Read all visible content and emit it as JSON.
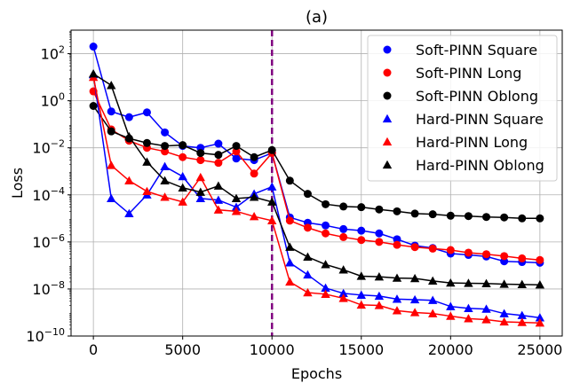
{
  "chart_data": {
    "type": "line",
    "title": "(a)",
    "xlabel": "Epochs",
    "ylabel": "Loss",
    "xlim": [
      -1250,
      26250
    ],
    "ylim": [
      1e-10,
      1000
    ],
    "yscale": "log",
    "grid": true,
    "legend_position": "top-right",
    "x_ticks": [
      0,
      5000,
      10000,
      15000,
      20000,
      25000
    ],
    "x_tick_labels": [
      "0",
      "5000",
      "10000",
      "15000",
      "20000",
      "25000"
    ],
    "y_ticks": [
      1e-10,
      1e-08,
      1e-06,
      0.0001,
      0.01,
      1,
      100
    ],
    "y_tick_base": "10",
    "y_tick_exponents": [
      "−10",
      "−8",
      "−6",
      "−4",
      "−2",
      "0",
      "2"
    ],
    "vline": {
      "x": 10000,
      "color": "#800080",
      "style": "dashed"
    },
    "x": [
      0,
      1000,
      2000,
      3000,
      4000,
      5000,
      6000,
      7000,
      8000,
      9000,
      10000,
      11000,
      12000,
      13000,
      14000,
      15000,
      16000,
      17000,
      18000,
      19000,
      20000,
      21000,
      22000,
      23000,
      24000,
      25000
    ],
    "series": [
      {
        "name": "Soft-PINN Square",
        "color": "#0000ff",
        "marker": "circle",
        "values": [
          200,
          0.35,
          0.2,
          0.32,
          0.045,
          0.012,
          0.01,
          0.015,
          0.0035,
          0.003,
          0.006,
          1.1e-05,
          6.5e-06,
          5e-06,
          3.5e-06,
          3e-06,
          2.3e-06,
          1.3e-06,
          7e-07,
          5.5e-07,
          3.2e-07,
          2.8e-07,
          2.4e-07,
          1.5e-07,
          1.4e-07,
          1.3e-07
        ]
      },
      {
        "name": "Soft-PINN Long",
        "color": "#ff0000",
        "marker": "circle",
        "values": [
          2.5,
          0.06,
          0.02,
          0.01,
          0.007,
          0.004,
          0.003,
          0.0023,
          0.007,
          0.0008,
          0.006,
          8e-06,
          4e-06,
          2.3e-06,
          1.6e-06,
          1.2e-06,
          1e-06,
          7.5e-07,
          6e-07,
          5.2e-07,
          4.5e-07,
          3.5e-07,
          3e-07,
          2.5e-07,
          2e-07,
          1.7e-07
        ]
      },
      {
        "name": "Soft-PINN Oblong",
        "color": "#000000",
        "marker": "circle",
        "values": [
          0.6,
          0.05,
          0.025,
          0.016,
          0.012,
          0.013,
          0.006,
          0.005,
          0.012,
          0.004,
          0.008,
          0.0004,
          0.00011,
          4e-05,
          3.2e-05,
          3e-05,
          2.4e-05,
          2e-05,
          1.6e-05,
          1.5e-05,
          1.3e-05,
          1.25e-05,
          1.15e-05,
          1.1e-05,
          1e-05,
          1e-05
        ]
      },
      {
        "name": "Hard-PINN Square",
        "color": "#0000ff",
        "marker": "triangle",
        "values": [
          13,
          7e-05,
          1.6e-05,
          0.0001,
          0.0016,
          0.0006,
          7e-05,
          6e-05,
          3e-05,
          0.00011,
          0.00022,
          1.3e-07,
          4e-08,
          1.1e-08,
          6.5e-09,
          5.5e-09,
          5e-09,
          3.7e-09,
          3.5e-09,
          3.3e-09,
          1.8e-09,
          1.5e-09,
          1.4e-09,
          9e-10,
          7.5e-10,
          6e-10
        ]
      },
      {
        "name": "Hard-PINN Long",
        "color": "#ff0000",
        "marker": "triangle",
        "values": [
          10,
          0.0018,
          0.0004,
          0.00014,
          8e-05,
          5e-05,
          0.00055,
          2.3e-05,
          2e-05,
          1.2e-05,
          8e-06,
          2e-08,
          7e-09,
          6e-09,
          4e-09,
          2.1e-09,
          2e-09,
          1.2e-09,
          1e-09,
          9e-10,
          7e-10,
          5.5e-10,
          5e-10,
          4e-10,
          3.8e-10,
          3.6e-10
        ]
      },
      {
        "name": "Hard-PINN Oblong",
        "color": "#000000",
        "marker": "triangle",
        "values": [
          14,
          4.5,
          0.03,
          0.0025,
          0.0004,
          0.0002,
          0.00013,
          0.00024,
          7e-05,
          8e-05,
          5e-05,
          6e-07,
          2.3e-07,
          1.1e-07,
          6.5e-08,
          3.5e-08,
          3.3e-08,
          2.9e-08,
          2.8e-08,
          2.2e-08,
          1.8e-08,
          1.75e-08,
          1.7e-08,
          1.6e-08,
          1.55e-08,
          1.5e-08
        ]
      }
    ]
  }
}
